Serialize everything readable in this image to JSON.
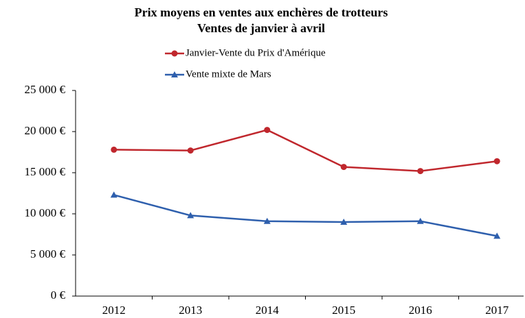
{
  "chart_data": {
    "type": "line",
    "title": "Prix moyens en ventes aux enchères de trotteurs",
    "subtitle": "Ventes de janvier à avril",
    "categories": [
      "2012",
      "2013",
      "2014",
      "2015",
      "2016",
      "2017"
    ],
    "series": [
      {
        "name": "Janvier-Vente du Prix d'Amérique",
        "color": "#c0272d",
        "marker": "circle",
        "values": [
          17800,
          17700,
          20200,
          15700,
          15200,
          16400
        ]
      },
      {
        "name": "Vente mixte de Mars",
        "color": "#2e5fad",
        "marker": "triangle",
        "values": [
          12300,
          9800,
          9100,
          9000,
          9100,
          7300
        ]
      }
    ],
    "ylim": [
      0,
      25000
    ],
    "yticks": [
      {
        "value": 0,
        "label": "0 €"
      },
      {
        "value": 5000,
        "label": "5 000 €"
      },
      {
        "value": 10000,
        "label": "10 000 €"
      },
      {
        "value": 15000,
        "label": "15 000 €"
      },
      {
        "value": 20000,
        "label": "20 000 €"
      },
      {
        "value": 25000,
        "label": "25 000 €"
      }
    ],
    "grid": false,
    "legend": "top"
  }
}
